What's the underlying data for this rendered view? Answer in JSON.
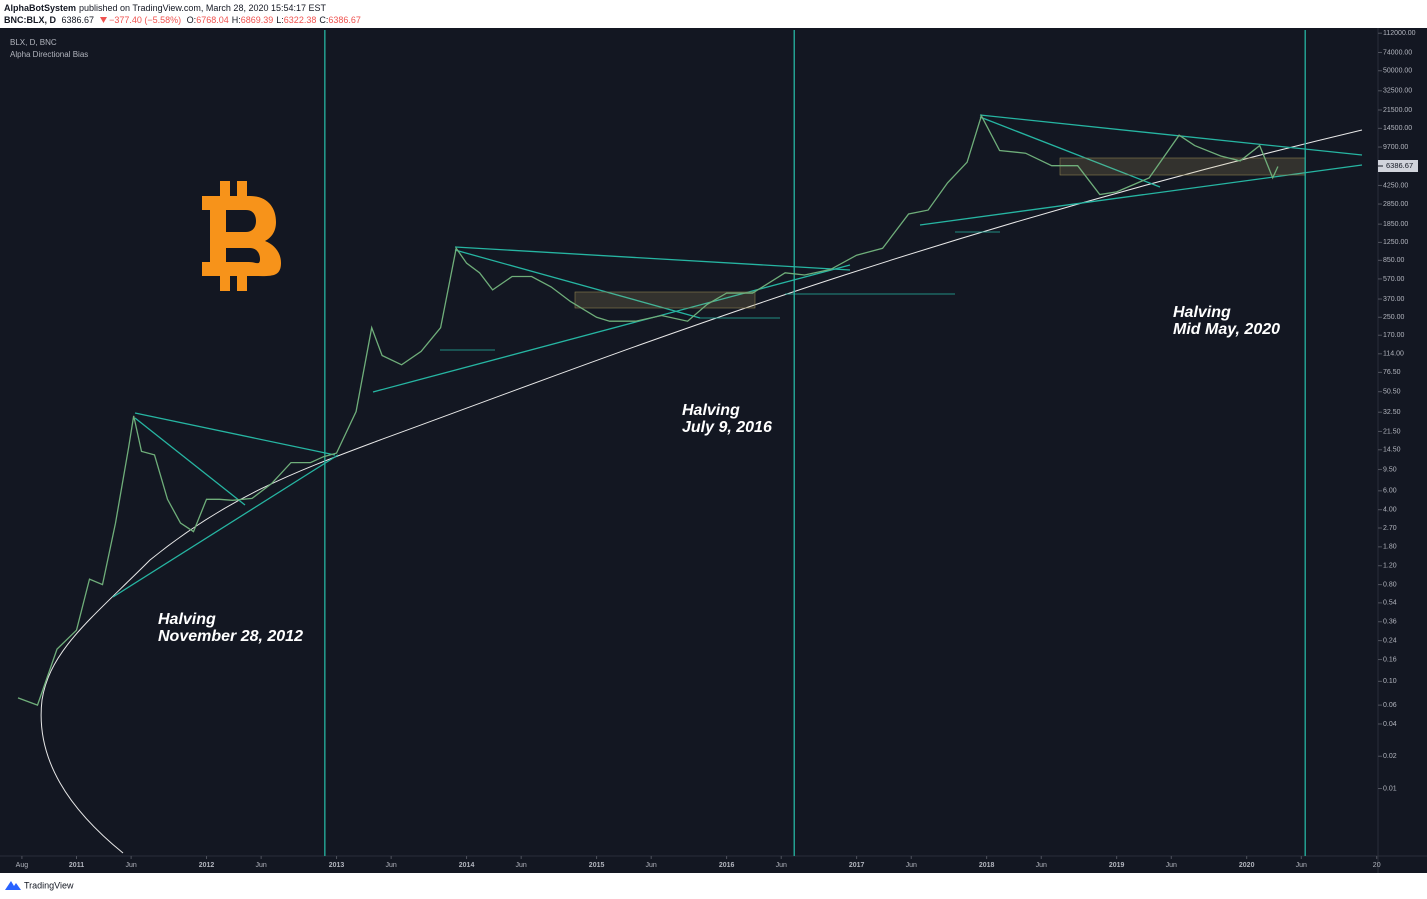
{
  "header": {
    "publisher": "AlphaBotSystem",
    "published": "published on TradingView.com, March 28, 2020 15:54:17 EST",
    "symbol": "BNC:BLX, D",
    "price": "6386.67",
    "change": "−377.40 (−5.58%)",
    "ohlc": [
      {
        "label": "O:",
        "value": "6768.04"
      },
      {
        "label": "H:",
        "value": "6869.39"
      },
      {
        "label": "L:",
        "value": "6322.38"
      },
      {
        "label": "C:",
        "value": "6386.67"
      }
    ]
  },
  "footer": {
    "brand": "TradingView"
  },
  "chart_data": {
    "type": "line",
    "title": "BLX, D, BNC",
    "subtitle": "Alpha Directional Bias",
    "log_scale": true,
    "grid": false,
    "x": [
      2010.55,
      2010.7,
      2010.85,
      2011.0,
      2011.1,
      2011.2,
      2011.3,
      2011.4,
      2011.44,
      2011.5,
      2011.6,
      2011.7,
      2011.8,
      2011.9,
      2012.0,
      2012.1,
      2012.2,
      2012.35,
      2012.5,
      2012.65,
      2012.8,
      2012.9,
      2013.0,
      2013.15,
      2013.27,
      2013.35,
      2013.5,
      2013.65,
      2013.8,
      2013.92,
      2014.0,
      2014.1,
      2014.2,
      2014.35,
      2014.5,
      2014.65,
      2014.8,
      2015.0,
      2015.1,
      2015.3,
      2015.5,
      2015.7,
      2015.85,
      2016.0,
      2016.2,
      2016.45,
      2016.6,
      2016.8,
      2017.0,
      2017.2,
      2017.4,
      2017.55,
      2017.7,
      2017.85,
      2017.96,
      2018.1,
      2018.3,
      2018.5,
      2018.7,
      2018.87,
      2019.0,
      2019.25,
      2019.48,
      2019.6,
      2019.8,
      2019.95,
      2020.1,
      2020.2,
      2020.24
    ],
    "series": [
      {
        "name": "BLX",
        "color": "#6fae7a",
        "values": [
          0.07,
          0.06,
          0.2,
          0.3,
          0.9,
          0.8,
          3,
          15,
          30,
          14,
          13,
          5,
          3,
          2.5,
          5,
          5,
          4.9,
          5.1,
          7,
          11,
          11,
          12.5,
          13.5,
          33,
          200,
          110,
          90,
          120,
          200,
          1100,
          800,
          650,
          450,
          600,
          600,
          480,
          350,
          250,
          230,
          230,
          260,
          230,
          330,
          420,
          420,
          650,
          620,
          700,
          950,
          1100,
          2300,
          2500,
          4500,
          7000,
          19000,
          9000,
          8500,
          6500,
          6500,
          3500,
          3700,
          5000,
          12500,
          10000,
          8000,
          7200,
          10000,
          5000,
          6386.67
        ]
      }
    ],
    "xlim": [
      2010.45,
      2021.01
    ],
    "xticks": [
      {
        "value": 2010.58,
        "label": "Aug"
      },
      2011,
      {
        "value": 2011.42,
        "label": "Jun"
      },
      2012,
      {
        "value": 2012.42,
        "label": "Jun"
      },
      2013,
      {
        "value": 2013.42,
        "label": "Jun"
      },
      2014,
      {
        "value": 2014.42,
        "label": "Jun"
      },
      2015,
      {
        "value": 2015.42,
        "label": "Jun"
      },
      2016,
      {
        "value": 2016.42,
        "label": "Jun"
      },
      2017,
      {
        "value": 2017.42,
        "label": "Jun"
      },
      2018,
      {
        "value": 2018.42,
        "label": "Jun"
      },
      2019,
      {
        "value": 2019.42,
        "label": "Jun"
      },
      2020,
      {
        "value": 2020.42,
        "label": "Jun"
      },
      {
        "value": 2021,
        "label": "20"
      }
    ],
    "ylim": [
      0.0025,
      120000
    ],
    "yticks": [
      {
        "value": 112000,
        "label": "112000.00"
      },
      {
        "value": 74000,
        "label": "74000.00"
      },
      {
        "value": 50000,
        "label": "50000.00"
      },
      {
        "value": 32500,
        "label": "32500.00"
      },
      {
        "value": 21500,
        "label": "21500.00"
      },
      {
        "value": 14500,
        "label": "14500.00"
      },
      {
        "value": 9700,
        "label": "9700.00"
      },
      {
        "value": 4250,
        "label": "4250.00"
      },
      {
        "value": 2850,
        "label": "2850.00"
      },
      {
        "value": 1850,
        "label": "1850.00"
      },
      {
        "value": 1250,
        "label": "1250.00"
      },
      {
        "value": 850,
        "label": "850.00"
      },
      {
        "value": 570,
        "label": "570.00"
      },
      {
        "value": 370,
        "label": "370.00"
      },
      {
        "value": 250,
        "label": "250.00"
      },
      {
        "value": 170,
        "label": "170.00"
      },
      {
        "value": 114,
        "label": "114.00"
      },
      {
        "value": 76.5,
        "label": "76.50"
      },
      {
        "value": 50.5,
        "label": "50.50"
      },
      {
        "value": 32.5,
        "label": "32.50"
      },
      {
        "value": 21.5,
        "label": "21.50"
      },
      {
        "value": 14.5,
        "label": "14.50"
      },
      {
        "value": 9.5,
        "label": "9.50"
      },
      {
        "value": 6,
        "label": "6.00"
      },
      {
        "value": 4,
        "label": "4.00"
      },
      {
        "value": 2.7,
        "label": "2.70"
      },
      {
        "value": 1.8,
        "label": "1.80"
      },
      {
        "value": 1.2,
        "label": "1.20"
      },
      {
        "value": 0.8,
        "label": "0.80"
      },
      0.54,
      0.36,
      0.24,
      0.16,
      {
        "value": 0.1,
        "label": "0.10"
      },
      0.06,
      0.04,
      0.02,
      0.01
    ],
    "halvings": [
      {
        "x": 2012.91,
        "title": "Halving",
        "date": "November 28, 2012"
      },
      {
        "x": 2016.52,
        "title": "Halving",
        "date": "July 9, 2016"
      },
      {
        "x": 2020.45,
        "title": "Halving",
        "date": "Mid May, 2020"
      }
    ]
  }
}
